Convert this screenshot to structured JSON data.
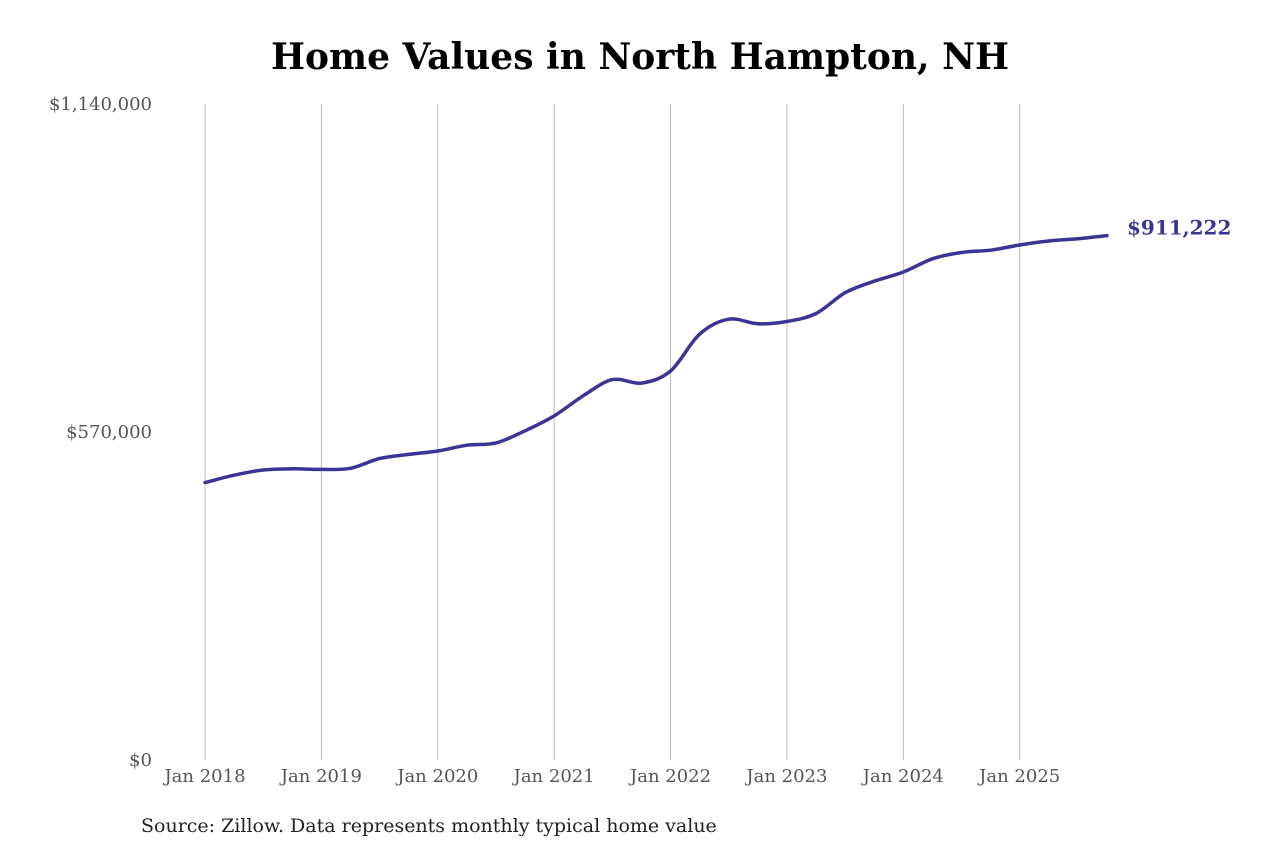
{
  "chart_data": {
    "type": "line",
    "title": "Home Values in North Hampton, NH",
    "source": "Source: Zillow. Data represents monthly typical home value",
    "ylim": [
      0,
      1140000
    ],
    "y_ticks": [
      {
        "value": 0,
        "label": "$0"
      },
      {
        "value": 570000,
        "label": "$570,000"
      },
      {
        "value": 1140000,
        "label": "$1,140,000"
      }
    ],
    "x_range": [
      "2018-01",
      "2025-10"
    ],
    "x_ticks": [
      {
        "date": "2018-01",
        "label": "Jan 2018"
      },
      {
        "date": "2019-01",
        "label": "Jan 2019"
      },
      {
        "date": "2020-01",
        "label": "Jan 2020"
      },
      {
        "date": "2021-01",
        "label": "Jan 2021"
      },
      {
        "date": "2022-01",
        "label": "Jan 2022"
      },
      {
        "date": "2023-01",
        "label": "Jan 2023"
      },
      {
        "date": "2024-01",
        "label": "Jan 2024"
      },
      {
        "date": "2025-01",
        "label": "Jan 2025"
      }
    ],
    "grid": {
      "vertical": true,
      "horizontal": false
    },
    "line_color": "#3a3594",
    "end_label": "$911,222",
    "series": [
      {
        "x": [
          "2018-01",
          "2018-04",
          "2018-07",
          "2018-10",
          "2019-01",
          "2019-04",
          "2019-07",
          "2019-10",
          "2020-01",
          "2020-04",
          "2020-07",
          "2020-10",
          "2021-01",
          "2021-04",
          "2021-07",
          "2021-10",
          "2022-01",
          "2022-04",
          "2022-07",
          "2022-10",
          "2023-01",
          "2023-04",
          "2023-07",
          "2023-10",
          "2024-01",
          "2024-04",
          "2024-07",
          "2024-10",
          "2025-01",
          "2025-04",
          "2025-07",
          "2025-10"
        ],
        "values": [
          482000,
          495000,
          504000,
          506000,
          505000,
          507000,
          524000,
          531000,
          537000,
          547000,
          551000,
          572000,
          598000,
          633000,
          661000,
          655000,
          676000,
          740000,
          766000,
          758000,
          762000,
          776000,
          812000,
          832000,
          848000,
          871000,
          882000,
          886000,
          895000,
          902000,
          906000,
          911222
        ]
      }
    ]
  }
}
